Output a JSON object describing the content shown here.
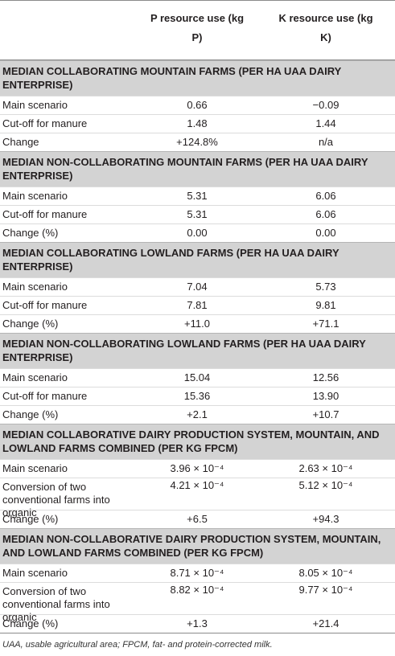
{
  "header": {
    "p_col": "P resource use (kg P)",
    "k_col": "K resource use (kg K)"
  },
  "sections": [
    {
      "title": "MEDIAN COLLABORATING MOUNTAIN FARMS (PER HA UAA DAIRY ENTERPRISE)",
      "rows": [
        {
          "label": "Main scenario",
          "p": "0.66",
          "k": "−0.09"
        },
        {
          "label": "Cut-off for manure",
          "p": "1.48",
          "k": "1.44"
        },
        {
          "label": "Change",
          "p": "+124.8%",
          "k": "n/a"
        }
      ]
    },
    {
      "title": "MEDIAN NON-COLLABORATING MOUNTAIN FARMS (PER HA UAA DAIRY ENTERPRISE)",
      "rows": [
        {
          "label": "Main scenario",
          "p": "5.31",
          "k": "6.06"
        },
        {
          "label": "Cut-off for manure",
          "p": "5.31",
          "k": "6.06"
        },
        {
          "label": "Change (%)",
          "p": "0.00",
          "k": "0.00"
        }
      ]
    },
    {
      "title": "MEDIAN COLLABORATING LOWLAND FARMS (PER HA UAA DAIRY ENTERPRISE)",
      "rows": [
        {
          "label": "Main scenario",
          "p": "7.04",
          "k": "5.73"
        },
        {
          "label": "Cut-off for manure",
          "p": "7.81",
          "k": "9.81"
        },
        {
          "label": "Change (%)",
          "p": "+11.0",
          "k": "+71.1"
        }
      ]
    },
    {
      "title": "MEDIAN NON-COLLABORATING LOWLAND FARMS (PER HA UAA DAIRY ENTERPRISE)",
      "rows": [
        {
          "label": "Main scenario",
          "p": "15.04",
          "k": "12.56"
        },
        {
          "label": "Cut-off for manure",
          "p": "15.36",
          "k": "13.90"
        },
        {
          "label": "Change (%)",
          "p": "+2.1",
          "k": "+10.7"
        }
      ]
    },
    {
      "title": "MEDIAN COLLABORATIVE DAIRY PRODUCTION SYSTEM, MOUNTAIN, AND LOWLAND FARMS COMBINED (PER KG FPCM)",
      "rows": [
        {
          "label": "Main scenario",
          "p": "3.96 × 10⁻⁴",
          "k": "2.63 × 10⁻⁴"
        },
        {
          "label": "Conversion of two conventional farms into organic",
          "p": "4.21 × 10⁻⁴",
          "k": "5.12 × 10⁻⁴",
          "tall": true
        },
        {
          "label": "Change (%)",
          "p": "+6.5",
          "k": "+94.3"
        }
      ]
    },
    {
      "title": "MEDIAN NON-COLLABORATIVE DAIRY PRODUCTION SYSTEM, MOUNTAIN, AND LOWLAND FARMS COMBINED (PER KG FPCM)",
      "rows": [
        {
          "label": "Main scenario",
          "p": "8.71 × 10⁻⁴",
          "k": "8.05 × 10⁻⁴"
        },
        {
          "label": "Conversion of two conventional farms into organic",
          "p": "8.82 × 10⁻⁴",
          "k": "9.77 × 10⁻⁴",
          "tall": true
        },
        {
          "label": "Change (%)",
          "p": "+1.3",
          "k": "+21.4"
        }
      ]
    }
  ],
  "footnote": "UAA, usable agricultural area; FPCM, fat- and protein-corrected milk."
}
